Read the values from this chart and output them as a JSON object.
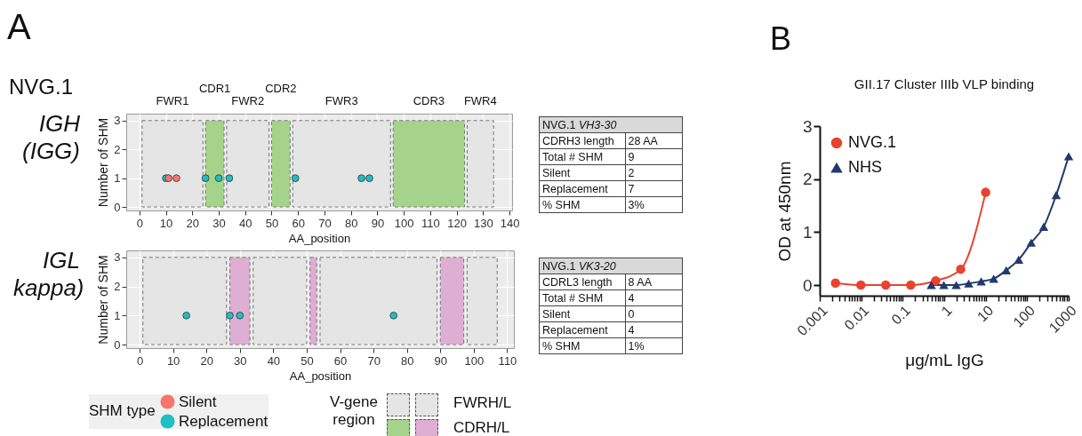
{
  "chart_data": [
    {
      "type": "scatter",
      "xlabel": "AA_position",
      "ylabel": "Number of SHM",
      "xlim": [
        -5,
        141
      ],
      "ylim": [
        -0.12,
        3.24
      ],
      "xticks": [
        0,
        10,
        20,
        30,
        40,
        50,
        60,
        70,
        80,
        90,
        100,
        110,
        120,
        130,
        140
      ],
      "yticks": [
        0,
        1,
        2,
        3
      ],
      "grid": true,
      "marker": "circle",
      "annotations": [
        "A",
        "NVG.1",
        "IGH (IGG)"
      ],
      "bands": [
        {
          "axis": "x",
          "from": 1,
          "to": 24,
          "label": "FWR1",
          "color": "#e4e5e4"
        },
        {
          "axis": "x",
          "from": 25,
          "to": 32,
          "label": "CDR1",
          "color": "#a6d38b"
        },
        {
          "axis": "x",
          "from": 33,
          "to": 49,
          "label": "FWR2",
          "color": "#e4e5e4"
        },
        {
          "axis": "x",
          "from": 50,
          "to": 57,
          "label": "CDR2",
          "color": "#a6d38b"
        },
        {
          "axis": "x",
          "from": 58,
          "to": 95,
          "label": "FWR3",
          "color": "#e4e5e4"
        },
        {
          "axis": "x",
          "from": 96,
          "to": 123,
          "label": "CDR3",
          "color": "#a6d38b"
        },
        {
          "axis": "x",
          "from": 124,
          "to": 134,
          "label": "FWR4",
          "color": "#e4e5e4"
        }
      ],
      "series": [
        {
          "color": "#f8766d",
          "x": [
            11,
            14
          ],
          "values": [
            1,
            1
          ]
        },
        {
          "color": "#1fbfc4",
          "x": [
            10,
            25,
            30,
            34,
            59,
            84,
            87
          ],
          "values": [
            1,
            1,
            1,
            1,
            1,
            1,
            1
          ]
        }
      ]
    },
    {
      "type": "other",
      "title": "NVG.1",
      "subtitle": "VH3-30",
      "annotations": [
        "CDRH3 length",
        "28 AA",
        "Total # SHM",
        "9",
        "Silent",
        "2",
        "Replacement",
        "7",
        "% SHM",
        "3%"
      ]
    },
    {
      "type": "scatter",
      "xlabel": "AA_position",
      "ylabel": "Number of SHM",
      "xlim": [
        -4,
        112
      ],
      "ylim": [
        -0.12,
        3.24
      ],
      "xticks": [
        0,
        10,
        20,
        30,
        40,
        50,
        60,
        70,
        80,
        90,
        100,
        110
      ],
      "yticks": [
        0,
        1,
        2,
        3
      ],
      "grid": true,
      "marker": "circle",
      "legend": "bottom",
      "legend_title": "SHM type",
      "annotations": [
        "IGL kappa)",
        "V-gene region",
        "FWRH/L",
        "CDRH/L"
      ],
      "bands": [
        {
          "axis": "x",
          "from": 1,
          "to": 26,
          "color": "#e4e5e4"
        },
        {
          "axis": "x",
          "from": 27,
          "to": 33,
          "color": "#dfaed3"
        },
        {
          "axis": "x",
          "from": 34,
          "to": 50,
          "color": "#e4e5e4"
        },
        {
          "axis": "x",
          "from": 51,
          "to": 53,
          "color": "#dfaed3"
        },
        {
          "axis": "x",
          "from": 54,
          "to": 89,
          "color": "#e4e5e4"
        },
        {
          "axis": "x",
          "from": 90,
          "to": 97,
          "color": "#dfaed3"
        },
        {
          "axis": "x",
          "from": 98,
          "to": 107,
          "color": "#e4e5e4"
        }
      ],
      "series": [
        {
          "name": "Silent",
          "color": "#f8766d"
        },
        {
          "name": "Replacement",
          "color": "#1fbfc4",
          "x": [
            14,
            27,
            30,
            76
          ],
          "values": [
            1,
            1,
            1,
            1
          ]
        }
      ]
    },
    {
      "type": "other",
      "title": "NVG.1",
      "subtitle": "VK3-20",
      "annotations": [
        "CDRL3 length",
        "8 AA",
        "Total # SHM",
        "4",
        "Silent",
        "0",
        "Replacement",
        "4",
        "% SHM",
        "1%"
      ]
    },
    {
      "type": "line",
      "title": "GII.17 Cluster IIIb VLP binding",
      "xlabel": "μg/mL IgG",
      "ylabel": "OD at 450nm",
      "log": "x",
      "xlim": [
        0.001,
        1000
      ],
      "ylim": [
        -0.2,
        3
      ],
      "yticks": [
        0,
        1,
        2,
        3
      ],
      "legend": "top left",
      "annotations": [
        "B"
      ],
      "xticks": [
        0.001,
        {
          "value": 0.002,
          "label": null
        },
        {
          "value": 0.003,
          "label": null
        },
        {
          "value": 0.004,
          "label": null
        },
        {
          "value": 0.005,
          "label": null
        },
        {
          "value": 0.006,
          "label": null
        },
        {
          "value": 0.007,
          "label": null
        },
        {
          "value": 0.008,
          "label": null
        },
        {
          "value": 0.009,
          "label": null
        },
        0.01,
        {
          "value": 0.02,
          "label": null
        },
        {
          "value": 0.03,
          "label": null
        },
        {
          "value": 0.04,
          "label": null
        },
        {
          "value": 0.05,
          "label": null
        },
        {
          "value": 0.06,
          "label": null
        },
        {
          "value": 0.07,
          "label": null
        },
        {
          "value": 0.08,
          "label": null
        },
        {
          "value": 0.09,
          "label": null
        },
        0.1,
        {
          "value": 0.2,
          "label": null
        },
        {
          "value": 0.3,
          "label": null
        },
        {
          "value": 0.4,
          "label": null
        },
        {
          "value": 0.5,
          "label": null
        },
        {
          "value": 0.6,
          "label": null
        },
        {
          "value": 0.7,
          "label": null
        },
        {
          "value": 0.8,
          "label": null
        },
        {
          "value": 0.9,
          "label": null
        },
        1,
        {
          "value": 2,
          "label": null
        },
        {
          "value": 3,
          "label": null
        },
        {
          "value": 4,
          "label": null
        },
        {
          "value": 5,
          "label": null
        },
        {
          "value": 6,
          "label": null
        },
        {
          "value": 7,
          "label": null
        },
        {
          "value": 8,
          "label": null
        },
        {
          "value": 9,
          "label": null
        },
        10,
        {
          "value": 20,
          "label": null
        },
        {
          "value": 30,
          "label": null
        },
        {
          "value": 40,
          "label": null
        },
        {
          "value": 50,
          "label": null
        },
        {
          "value": 60,
          "label": null
        },
        {
          "value": 70,
          "label": null
        },
        {
          "value": 80,
          "label": null
        },
        {
          "value": 90,
          "label": null
        },
        100,
        {
          "value": 200,
          "label": null
        },
        {
          "value": 300,
          "label": null
        },
        {
          "value": 400,
          "label": null
        },
        {
          "value": 500,
          "label": null
        },
        {
          "value": 600,
          "label": null
        },
        {
          "value": 700,
          "label": null
        },
        {
          "value": 800,
          "label": null
        },
        {
          "value": 900,
          "label": null
        },
        1000
      ],
      "series": [
        {
          "name": "NVG.1",
          "color": "#e8432e",
          "marker": "circle",
          "x": [
            0.0024,
            0.0098,
            0.039,
            0.156,
            0.625,
            2.5,
            10
          ],
          "values": [
            0.04,
            0,
            0,
            0,
            0.08,
            0.3,
            1.75
          ]
        },
        {
          "name": "NHS",
          "color": "#1f3a6e",
          "marker": "triangle",
          "x": [
            0.49,
            0.98,
            1.95,
            3.9,
            7.8,
            15.6,
            31.25,
            62.5,
            125,
            250,
            500,
            1000
          ],
          "values": [
            0,
            0,
            0,
            0.03,
            0.07,
            0.12,
            0.28,
            0.48,
            0.8,
            1.1,
            1.7,
            2.43
          ]
        }
      ]
    }
  ]
}
